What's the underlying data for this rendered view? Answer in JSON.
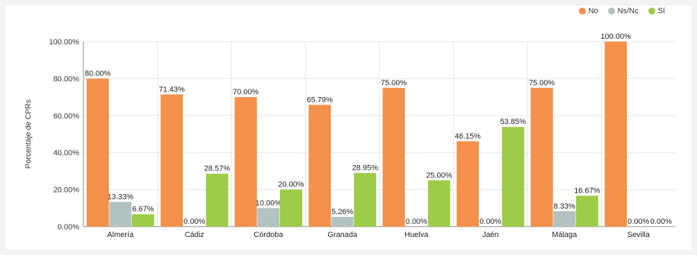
{
  "chart_data": {
    "type": "bar",
    "ylabel": "Porcentaje de CPRs",
    "ylim": [
      0,
      100
    ],
    "yticks": [
      "0.00%",
      "20.00%",
      "40.00%",
      "60.00%",
      "80.00%",
      "100.00%"
    ],
    "categories": [
      "Almería",
      "Cádiz",
      "Córdoba",
      "Granada",
      "Huelva",
      "Jaén",
      "Málaga",
      "Sevilla"
    ],
    "series": [
      {
        "name": "No",
        "color": "#f5914a",
        "values": [
          80.0,
          71.43,
          70.0,
          65.79,
          75.0,
          46.15,
          75.0,
          100.0
        ]
      },
      {
        "name": "Ns/Nc",
        "color": "#b3c2c2",
        "values": [
          13.33,
          0.0,
          10.0,
          5.26,
          0.0,
          0.0,
          8.33,
          0.0
        ]
      },
      {
        "name": "Sí",
        "color": "#9dcc47",
        "values": [
          6.67,
          28.57,
          20.0,
          28.95,
          25.0,
          53.85,
          16.67,
          0.0
        ]
      }
    ],
    "grid": true,
    "legend_position": "top-right"
  }
}
